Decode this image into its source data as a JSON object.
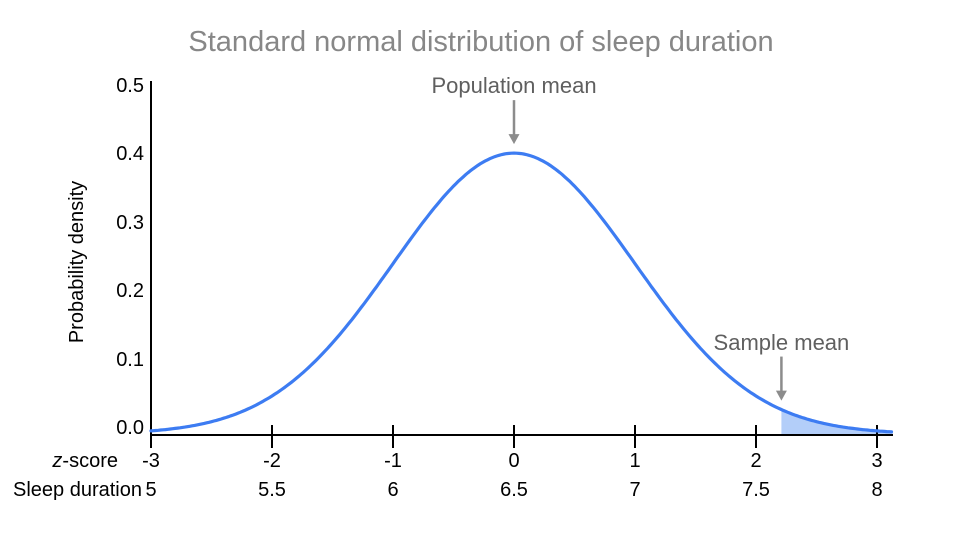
{
  "chart_data": {
    "type": "line",
    "title": "Standard normal distribution of sleep duration",
    "ylabel": "Probability density",
    "ylim": [
      0,
      0.5
    ],
    "y_ticks": [
      "0.0",
      "0.1",
      "0.2",
      "0.3",
      "0.4",
      "0.5"
    ],
    "y_tick_values": [
      0.0,
      0.1,
      0.2,
      0.3,
      0.4,
      0.5
    ],
    "grid": false,
    "legend": false,
    "curve": {
      "name": "standard-normal-pdf",
      "formula": "pdf(z) = exp(-z*z/2) / sqrt(2*pi)",
      "z_range": [
        -3,
        3.13
      ],
      "peak": {
        "z": 0,
        "density": 0.3989
      }
    },
    "x_axis_rows": [
      {
        "label": "z-score",
        "label_italic_part": "z",
        "label_rest": "-score",
        "values": [
          -3,
          -2,
          -1,
          0,
          1,
          2,
          3
        ],
        "tick_labels": [
          "-3",
          "-2",
          "-1",
          "0",
          "1",
          "2",
          "3"
        ],
        "density_at_ticks": [
          0.0044,
          0.054,
          0.242,
          0.3989,
          0.242,
          0.054,
          0.0044
        ]
      },
      {
        "label": "Sleep duration",
        "tick_labels": [
          "5",
          "5.5",
          "6",
          "6.5",
          "7",
          "7.5",
          "8"
        ]
      }
    ],
    "shaded_region": {
      "from_z": 2.21,
      "to_z": 3.13
    },
    "annotations": [
      {
        "id": "population-mean",
        "text": "Population mean",
        "at_z": 0
      },
      {
        "id": "sample-mean",
        "text": "Sample mean",
        "at_z": 2.21
      }
    ]
  },
  "colors": {
    "curve": "#3D7CF2",
    "shade": "#B3CEF9",
    "title_text": "#878787",
    "annotation_text": "#5F5F5F",
    "arrow": "#8C8C8C",
    "axis": "#000000",
    "tick_text": "#000000",
    "background": "#FFFFFF"
  }
}
